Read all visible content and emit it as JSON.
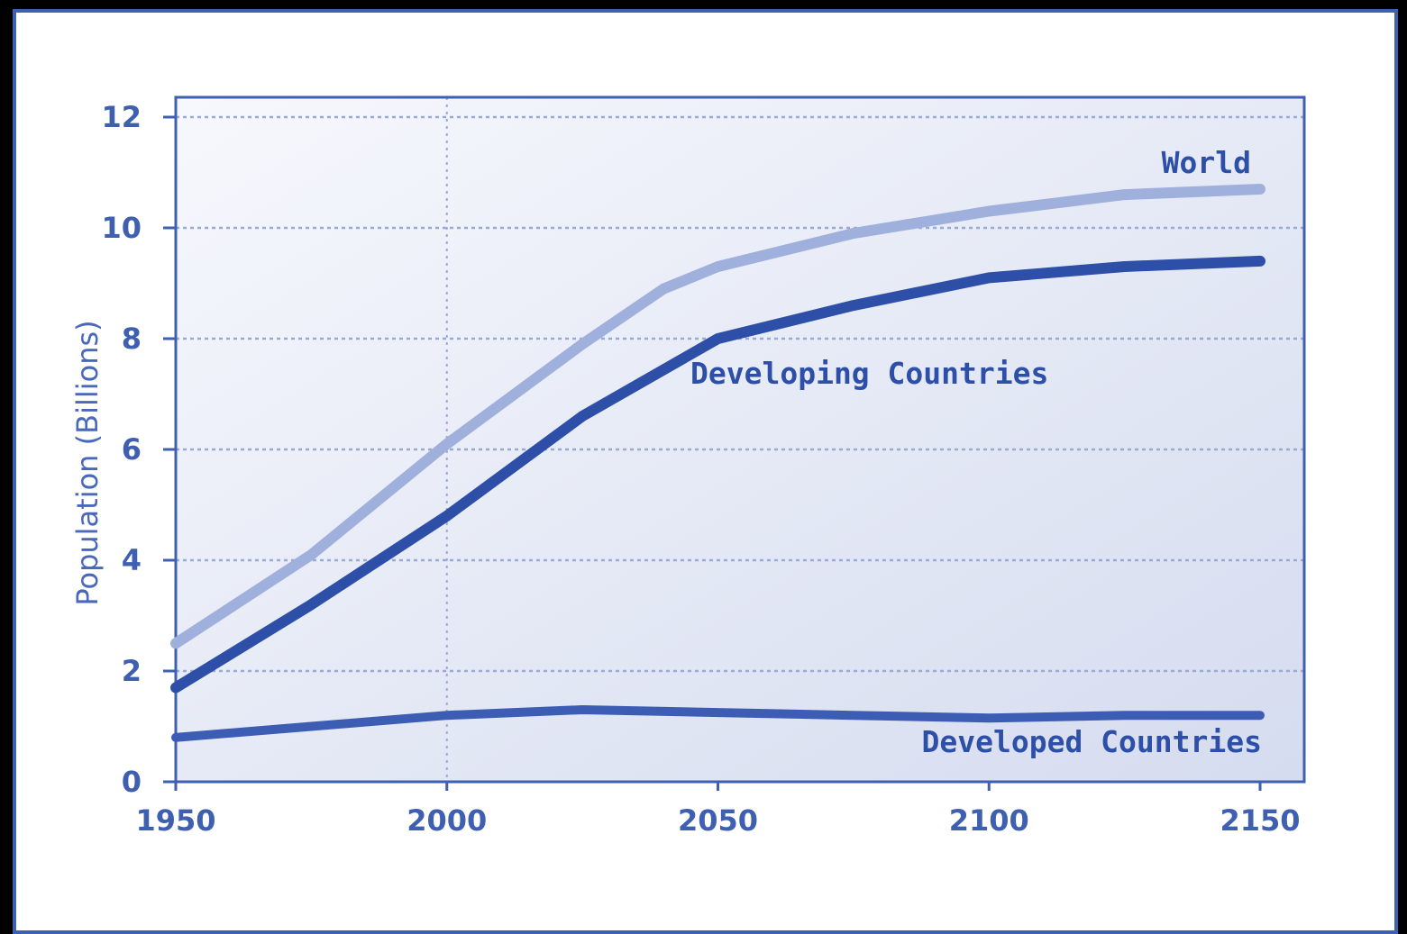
{
  "chart_data": {
    "type": "line",
    "ylabel": "Population (Billions)",
    "xlabel": "",
    "xlim": [
      1950,
      2150
    ],
    "ylim": [
      0,
      12
    ],
    "x_ticks": [
      1950,
      2000,
      2050,
      2100,
      2150
    ],
    "x_tick_labels": [
      "1950",
      "2000",
      "2050",
      "2100",
      "2150"
    ],
    "y_ticks": [
      0,
      2,
      4,
      6,
      8,
      10,
      12
    ],
    "y_tick_labels": [
      "0",
      "2",
      "4",
      "6",
      "8",
      "10",
      "12"
    ],
    "grid": true,
    "legend": "inline labels",
    "series": [
      {
        "name": "World",
        "color": "#9fb0dc",
        "points": [
          [
            1950,
            2.5
          ],
          [
            1975,
            4.1
          ],
          [
            2000,
            6.1
          ],
          [
            2025,
            7.9
          ],
          [
            2040,
            8.9
          ],
          [
            2050,
            9.3
          ],
          [
            2075,
            9.9
          ],
          [
            2100,
            10.3
          ],
          [
            2125,
            10.6
          ],
          [
            2150,
            10.7
          ]
        ]
      },
      {
        "name": "Developing Countries",
        "color": "#2d4fa8",
        "points": [
          [
            1950,
            1.7
          ],
          [
            1975,
            3.2
          ],
          [
            2000,
            4.8
          ],
          [
            2025,
            6.6
          ],
          [
            2050,
            8.0
          ],
          [
            2075,
            8.6
          ],
          [
            2100,
            9.1
          ],
          [
            2125,
            9.3
          ],
          [
            2150,
            9.4
          ]
        ]
      },
      {
        "name": "Developed Countries",
        "color": "#3d5db5",
        "points": [
          [
            1950,
            0.8
          ],
          [
            1975,
            1.0
          ],
          [
            2000,
            1.2
          ],
          [
            2025,
            1.3
          ],
          [
            2050,
            1.25
          ],
          [
            2075,
            1.2
          ],
          [
            2100,
            1.15
          ],
          [
            2125,
            1.2
          ],
          [
            2150,
            1.2
          ]
        ]
      }
    ],
    "colors": {
      "axis": "#3f5fb0",
      "grid": "#9aaad6",
      "plot_bg_top": "#f7f8fd",
      "plot_bg_bottom": "#d5dcef",
      "frame": "#3f5fb0"
    }
  }
}
